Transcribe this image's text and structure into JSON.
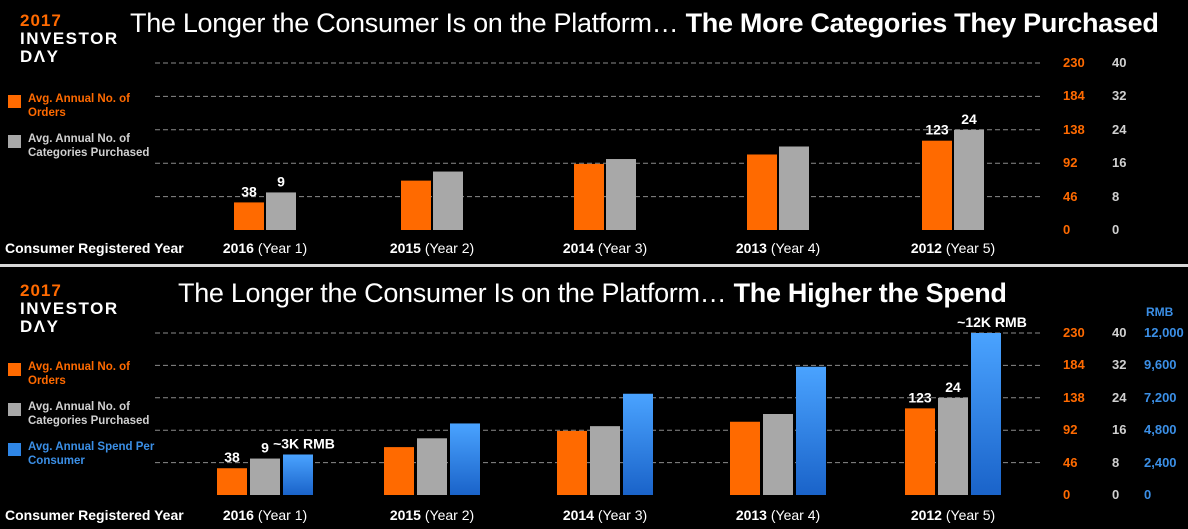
{
  "colors": {
    "orders": "#ff6a00",
    "categories": "#a8a8a8",
    "spend": "#2f86e6",
    "background": "#000000",
    "text": "#ffffff"
  },
  "logo": {
    "year": "2017",
    "line1": "INVESTOR",
    "line2": "DΛY"
  },
  "x_row_label": "Consumer Registered Year",
  "chart_data": [
    {
      "type": "bar",
      "title_regular": "The Longer the Consumer Is on the Platform…",
      "title_bold": "The More Categories They Purchased",
      "categories": [
        {
          "year": "2016",
          "note": "(Year 1)"
        },
        {
          "year": "2015",
          "note": "(Year 2)"
        },
        {
          "year": "2014",
          "note": "(Year 3)"
        },
        {
          "year": "2013",
          "note": "(Year 4)"
        },
        {
          "year": "2012",
          "note": "(Year 5)"
        }
      ],
      "series": [
        {
          "name": "Avg. Annual No. of Orders",
          "axis": "orders",
          "values": [
            38,
            68,
            91,
            104,
            123
          ],
          "labels": [
            "38",
            "",
            "",
            "",
            "123"
          ]
        },
        {
          "name": "Avg. Annual No. of Categories Purchased",
          "axis": "categories",
          "values": [
            9,
            14,
            17,
            20,
            24
          ],
          "labels": [
            "9",
            "",
            "",
            "",
            "24"
          ]
        }
      ],
      "axes": {
        "orders": {
          "ticks": [
            "0",
            "46",
            "92",
            "138",
            "184",
            "230"
          ],
          "ylim": [
            0,
            230
          ]
        },
        "categories": {
          "ticks": [
            "0",
            "8",
            "16",
            "24",
            "32",
            "40"
          ],
          "ylim": [
            0,
            40
          ]
        }
      },
      "grid": "dashed"
    },
    {
      "type": "bar",
      "title_regular": "The Longer the Consumer Is on the Platform…",
      "title_bold": "The Higher the Spend",
      "categories": [
        {
          "year": "2016",
          "note": "(Year 1)"
        },
        {
          "year": "2015",
          "note": "(Year 2)"
        },
        {
          "year": "2014",
          "note": "(Year 3)"
        },
        {
          "year": "2013",
          "note": "(Year 4)"
        },
        {
          "year": "2012",
          "note": "(Year 5)"
        }
      ],
      "series": [
        {
          "name": "Avg. Annual No. of Orders",
          "axis": "orders",
          "values": [
            38,
            68,
            91,
            104,
            123
          ],
          "labels": [
            "38",
            "",
            "",
            "",
            "123"
          ]
        },
        {
          "name": "Avg. Annual No. of Categories Purchased",
          "axis": "categories",
          "values": [
            9,
            14,
            17,
            20,
            24
          ],
          "labels": [
            "9",
            "",
            "",
            "",
            "24"
          ]
        },
        {
          "name": "Avg. Annual Spend Per Consumer",
          "axis": "spend",
          "values": [
            3000,
            5300,
            7500,
            9500,
            12000
          ],
          "labels": [
            "~3K RMB",
            "",
            "",
            "",
            "~12K RMB"
          ]
        }
      ],
      "axes": {
        "orders": {
          "ticks": [
            "0",
            "46",
            "92",
            "138",
            "184",
            "230"
          ],
          "ylim": [
            0,
            230
          ]
        },
        "categories": {
          "ticks": [
            "0",
            "8",
            "16",
            "24",
            "32",
            "40"
          ],
          "ylim": [
            0,
            40
          ]
        },
        "spend": {
          "unit": "RMB",
          "ticks": [
            "0",
            "2,400",
            "4,800",
            "7,200",
            "9,600",
            "12,000"
          ],
          "ylim": [
            0,
            12000
          ]
        }
      },
      "grid": "dashed"
    }
  ]
}
